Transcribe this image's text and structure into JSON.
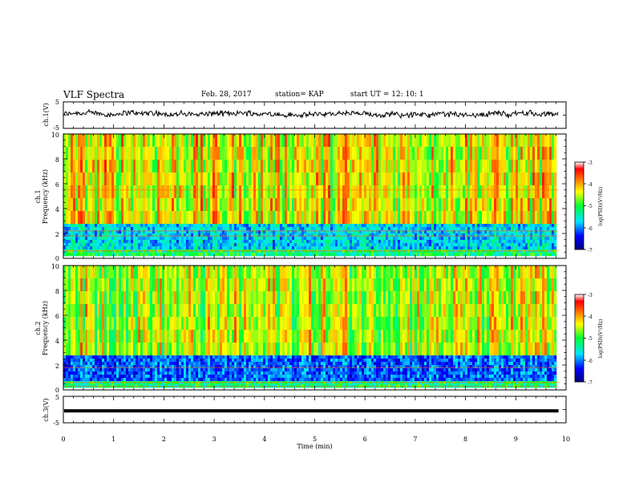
{
  "header": {
    "title": "VLF Spectra",
    "date": "Feb. 28, 2017",
    "station": "station= KAP",
    "start": "start  UT  =   12: 10: 1"
  },
  "chart_data": [
    {
      "type": "line",
      "panel": "ch1-waveform",
      "ylabel": "ch.1(V)",
      "ylim": [
        -5,
        5
      ],
      "yticks": [
        "5",
        "-5"
      ],
      "xlim": [
        0,
        10
      ],
      "data_end_min": 9.85,
      "series": [
        {
          "color": "#000000",
          "baseline": 0.4,
          "amplitude": 0.9
        }
      ]
    },
    {
      "type": "heatmap",
      "panel": "ch1-spectrogram",
      "ylabel_line1": "ch.1",
      "ylabel_line2": "Frequency  (kHz)",
      "ylim": [
        0,
        10
      ],
      "yticks": [
        "0",
        "2",
        "4",
        "6",
        "8",
        "10"
      ],
      "xlim": [
        0,
        10
      ],
      "colorbar": {
        "label": "log(PSD)(V²/Hz)",
        "range": [
          -7,
          -3
        ],
        "ticks": [
          "-3",
          "-4",
          "-5",
          "-6",
          "-7"
        ]
      }
    },
    {
      "type": "heatmap",
      "panel": "ch2-spectrogram",
      "ylabel_line1": "ch.2",
      "ylabel_line2": "Frequency  (kHz)",
      "ylim": [
        0,
        10
      ],
      "yticks": [
        "0",
        "2",
        "4",
        "6",
        "8",
        "10"
      ],
      "xlim": [
        0,
        10
      ],
      "colorbar": {
        "label": "log(PSD)(V²/Hz)",
        "range": [
          -7,
          -3
        ],
        "ticks": [
          "-3",
          "-4",
          "-5",
          "-6",
          "-7"
        ]
      }
    },
    {
      "type": "line",
      "panel": "ch3-waveform",
      "ylabel": "ch.3(V)",
      "ylim": [
        -5,
        5
      ],
      "yticks": [
        "5",
        "-5"
      ],
      "xlim": [
        0,
        10
      ],
      "data_end_min": 9.85,
      "series": [
        {
          "color": "#000000",
          "constant": -0.5
        }
      ]
    }
  ],
  "xaxis": {
    "label": "Time  (min)",
    "ticks": [
      "0",
      "1",
      "2",
      "3",
      "4",
      "5",
      "6",
      "7",
      "8",
      "9",
      "10"
    ]
  }
}
